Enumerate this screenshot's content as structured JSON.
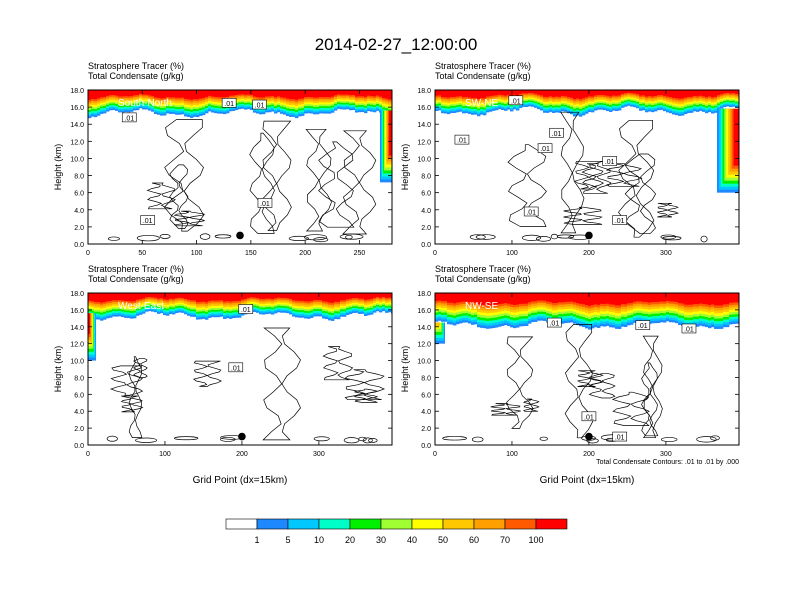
{
  "figure": {
    "title": "2014-02-27_12:00:00",
    "footnote": "Total Condensate Contours: .01 to .01 by .000"
  },
  "chart_data": [
    {
      "type": "heatmap",
      "panel_label": "South-North",
      "subtitle_line1": "Stratosphere Tracer   (%)",
      "subtitle_line2": "Total Condensate   (g/kg)",
      "ylabel": "Height (km)",
      "xlabel": "",
      "xlim": [
        0,
        280
      ],
      "ylim": [
        0,
        18
      ],
      "xticks": [
        0,
        50,
        100,
        150,
        200,
        250
      ],
      "yticks": [
        0,
        2,
        4,
        6,
        8,
        10,
        12,
        14,
        16,
        18
      ],
      "tracer_layer": {
        "base_km": 15.3,
        "saturation_km": 17.2
      },
      "contour_level": ".01",
      "contour_labels": [
        {
          "x": 38,
          "y": 14.8,
          "text": ".01"
        },
        {
          "x": 130,
          "y": 16.5,
          "text": ".01"
        },
        {
          "x": 158,
          "y": 16.3,
          "text": ".01"
        },
        {
          "x": 163,
          "y": 4.8,
          "text": ".01"
        },
        {
          "x": 55,
          "y": 2.8,
          "text": ".01"
        }
      ],
      "marker": {
        "x": 140,
        "y": 1.0
      }
    },
    {
      "type": "heatmap",
      "panel_label": "SW-NE",
      "subtitle_line1": "Stratosphere Tracer   (%)",
      "subtitle_line2": "Total Condensate   (g/kg)",
      "ylabel": "Height (km)",
      "xlabel": "",
      "xlim": [
        0,
        395
      ],
      "ylim": [
        0,
        18
      ],
      "xticks": [
        0,
        100,
        200,
        300
      ],
      "yticks": [
        0,
        2,
        4,
        6,
        8,
        10,
        12,
        14,
        16,
        18
      ],
      "tracer_layer": {
        "base_km": 15.5,
        "saturation_km": 17.3
      },
      "contour_level": ".01",
      "contour_labels": [
        {
          "x": 105,
          "y": 16.8,
          "text": ".01"
        },
        {
          "x": 35,
          "y": 12.2,
          "text": ".01"
        },
        {
          "x": 158,
          "y": 13.0,
          "text": ".01"
        },
        {
          "x": 143,
          "y": 11.2,
          "text": ".01"
        },
        {
          "x": 227,
          "y": 9.7,
          "text": ".01"
        },
        {
          "x": 125,
          "y": 3.8,
          "text": ".01"
        },
        {
          "x": 240,
          "y": 2.8,
          "text": ".01"
        }
      ],
      "marker": {
        "x": 200,
        "y": 1.0
      }
    },
    {
      "type": "heatmap",
      "panel_label": "West-East",
      "subtitle_line1": "Stratosphere Tracer   (%)",
      "subtitle_line2": "Total Condensate   (g/kg)",
      "ylabel": "Height (km)",
      "xlabel": "Grid Point (dx=15km)",
      "xlim": [
        0,
        395
      ],
      "ylim": [
        0,
        18
      ],
      "xticks": [
        0,
        100,
        200,
        300
      ],
      "yticks": [
        0,
        2,
        4,
        6,
        8,
        10,
        12,
        14,
        16,
        18
      ],
      "tracer_layer": {
        "base_km": 15.3,
        "saturation_km": 17.2
      },
      "contour_level": ".01",
      "contour_labels": [
        {
          "x": 205,
          "y": 16.1,
          "text": ".01"
        },
        {
          "x": 192,
          "y": 9.2,
          "text": ".01"
        }
      ],
      "marker": {
        "x": 200,
        "y": 1.0
      }
    },
    {
      "type": "heatmap",
      "panel_label": "NW-SE",
      "subtitle_line1": "Stratosphere Tracer   (%)",
      "subtitle_line2": "Total Condensate   (g/kg)",
      "ylabel": "Height (km)",
      "xlabel": "Grid Point (dx=15km)",
      "xlim": [
        0,
        395
      ],
      "ylim": [
        0,
        18
      ],
      "xticks": [
        0,
        100,
        200,
        300
      ],
      "yticks": [
        0,
        2,
        4,
        6,
        8,
        10,
        12,
        14,
        16,
        18
      ],
      "tracer_layer": {
        "base_km": 14.2,
        "saturation_km": 16.8
      },
      "contour_level": ".01",
      "contour_labels": [
        {
          "x": 155,
          "y": 14.5,
          "text": ".01"
        },
        {
          "x": 270,
          "y": 14.2,
          "text": ".01"
        },
        {
          "x": 330,
          "y": 13.8,
          "text": ".01"
        },
        {
          "x": 200,
          "y": 3.4,
          "text": ".01"
        },
        {
          "x": 240,
          "y": 1.0,
          "text": ".01"
        }
      ],
      "marker": {
        "x": 200,
        "y": 1.0
      }
    }
  ],
  "colorbar": {
    "levels": [
      "1",
      "5",
      "10",
      "20",
      "30",
      "40",
      "50",
      "60",
      "70",
      "100"
    ],
    "colors": [
      "#ffffff",
      "#1e88ff",
      "#00c8ff",
      "#00ffc8",
      "#00f000",
      "#a0ff32",
      "#ffff00",
      "#ffc800",
      "#ffa000",
      "#ff5a00",
      "#ff0000"
    ]
  }
}
